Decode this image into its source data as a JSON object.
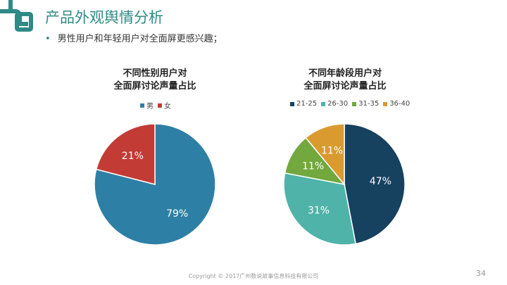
{
  "header": {
    "title": "产品外观舆情分析",
    "bullet": "男性用户和年轻用户对全面屏更感兴趣；"
  },
  "chart_data": [
    {
      "type": "pie",
      "title_line1": "不同性别用户对",
      "title_line2": "全面屏讨论声量占比",
      "legend_position": "top",
      "categories": [
        "男",
        "女"
      ],
      "values": [
        79,
        21
      ],
      "labels": [
        "79%",
        "21%"
      ],
      "colors": [
        "#2e7fa5",
        "#c23b35"
      ]
    },
    {
      "type": "pie",
      "title_line1": "不同年龄段用户对",
      "title_line2": "全面屏讨论声量占比",
      "legend_position": "top",
      "categories": [
        "21-25",
        "26-30",
        "31-35",
        "36-40"
      ],
      "values": [
        47,
        31,
        11,
        11
      ],
      "labels": [
        "47%",
        "31%",
        "11%",
        "11%"
      ],
      "colors": [
        "#16415f",
        "#4fb3a9",
        "#72a83e",
        "#d99a2f"
      ]
    }
  ],
  "footer": {
    "copyright": "Copyright © 2017广州数说故事信息科技有限公司",
    "page_number": "34"
  },
  "logo": {
    "color": "#2f8a86",
    "icon": "brand-logo-icon"
  }
}
